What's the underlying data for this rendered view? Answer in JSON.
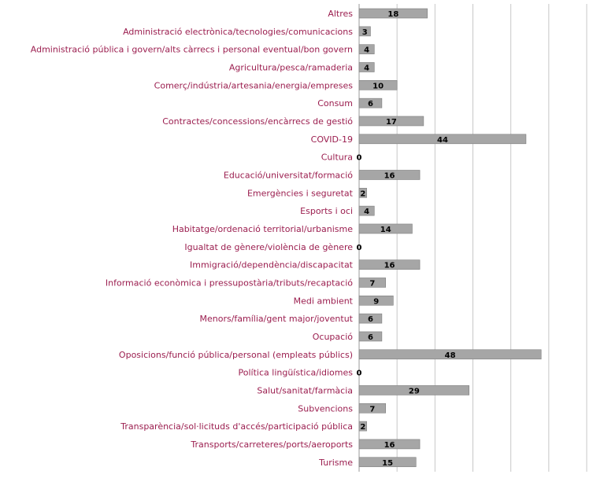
{
  "chart_data": {
    "type": "bar",
    "orientation": "horizontal",
    "categories": [
      "Altres",
      "Administració electrònica/tecnologies/comunicacions",
      "Administració pública i govern/alts càrrecs i personal eventual/bon govern",
      "Agricultura/pesca/ramaderia",
      "Comerç/indústria/artesania/energia/empreses",
      "Consum",
      "Contractes/concessions/encàrrecs de gestió",
      "COVID-19",
      "Cultura",
      "Educació/universitat/formació",
      "Emergències i seguretat",
      "Esports i oci",
      "Habitatge/ordenació territorial/urbanisme",
      "Igualtat de gènere/violència de gènere",
      "Immigració/dependència/discapacitat",
      "Informació econòmica i pressupostària/tributs/recaptació",
      "Medi ambient",
      "Menors/família/gent major/joventut",
      "Ocupació",
      "Oposicions/funció pública/personal (empleats públics)",
      "Política lingüística/idiomes",
      "Salut/sanitat/farmàcia",
      "Subvencions",
      "Transparència/sol·licituds d'accés/participació pública",
      "Transports/carreteres/ports/aeroports",
      "Turisme"
    ],
    "values": [
      18,
      3,
      4,
      4,
      10,
      6,
      17,
      44,
      0,
      16,
      2,
      4,
      14,
      0,
      16,
      7,
      9,
      6,
      6,
      48,
      0,
      29,
      7,
      2,
      16,
      15
    ],
    "xlim": [
      0,
      60
    ],
    "grid": true,
    "colors": {
      "bar": "#a6a6a6",
      "bar_outline": "#7f7f7f",
      "label": "#9b1e4f",
      "value": "#000000",
      "grid": "#c8c8c8"
    }
  }
}
